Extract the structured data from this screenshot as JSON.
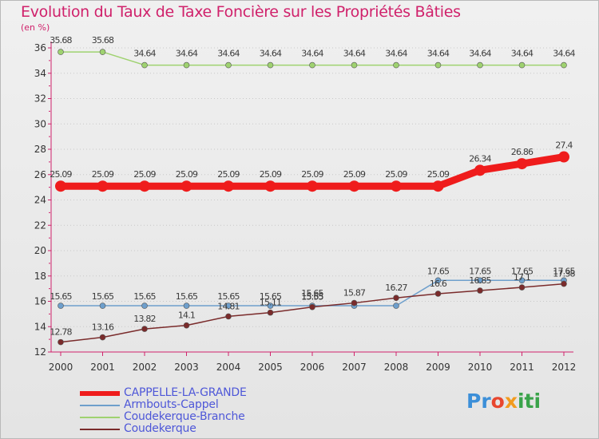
{
  "chart_data": {
    "type": "line",
    "title": "Evolution du Taux de Taxe Foncière sur les Propriétés Bâties",
    "ylabel": "(en %)",
    "xlabel": "",
    "categories": [
      "2000",
      "2001",
      "2002",
      "2003",
      "2004",
      "2005",
      "2006",
      "2007",
      "2008",
      "2009",
      "2010",
      "2011",
      "2012"
    ],
    "ylim": [
      12,
      36
    ],
    "yticks": [
      12,
      14,
      16,
      18,
      20,
      22,
      24,
      26,
      28,
      30,
      32,
      34,
      36
    ],
    "grid": "horizontal-dotted",
    "series": [
      {
        "name": "CAPPELLE-LA-GRANDE",
        "color": "#ef1c1c",
        "values": [
          25.09,
          25.09,
          25.09,
          25.09,
          25.09,
          25.09,
          25.09,
          25.09,
          25.09,
          25.09,
          26.34,
          26.86,
          27.4
        ],
        "labels": [
          "25.09",
          "25.09",
          "25.09",
          "25.09",
          "25.09",
          "25.09",
          "25.09",
          "25.09",
          "25.09",
          "25.09",
          "26.34",
          "26.86",
          "27.4"
        ]
      },
      {
        "name": "Armbouts-Cappel",
        "color": "#6e9fcc",
        "values": [
          15.65,
          15.65,
          15.65,
          15.65,
          15.65,
          15.65,
          15.65,
          15.65,
          15.65,
          17.65,
          17.65,
          17.65,
          17.65
        ],
        "labels": [
          "15.65",
          "15.65",
          "15.65",
          "15.65",
          "15.65",
          "15.65",
          "15.65",
          "",
          "",
          "17.65",
          "17.65",
          "17.65",
          "17.65"
        ]
      },
      {
        "name": "Coudekerque-Branche",
        "color": "#9fd270",
        "values": [
          35.68,
          35.68,
          34.64,
          34.64,
          34.64,
          34.64,
          34.64,
          34.64,
          34.64,
          34.64,
          34.64,
          34.64,
          34.64
        ],
        "labels": [
          "35.68",
          "35.68",
          "34.64",
          "34.64",
          "34.64",
          "34.64",
          "34.64",
          "34.64",
          "34.64",
          "34.64",
          "34.64",
          "34.64",
          "34.64"
        ]
      },
      {
        "name": "Coudekerque",
        "color": "#7a2b2b",
        "values": [
          12.78,
          13.16,
          13.82,
          14.1,
          14.81,
          15.11,
          15.55,
          15.87,
          16.27,
          16.6,
          16.85,
          17.1,
          17.38
        ],
        "labels": [
          "12.78",
          "13.16",
          "13.82",
          "14.1",
          "14.81",
          "15.11",
          "15.55",
          "15.87",
          "16.27",
          "16.6",
          "16.85",
          "17.1",
          "17.38"
        ]
      }
    ],
    "extra_labels": [
      "15.65",
      "15.65"
    ]
  },
  "legend": {
    "items": [
      {
        "label": "CAPPELLE-LA-GRANDE",
        "color": "#ef1c1c"
      },
      {
        "label": "Armbouts-Cappel",
        "color": "#6e9fcc"
      },
      {
        "label": "Coudekerque-Branche",
        "color": "#9fd270"
      },
      {
        "label": "Coudekerque",
        "color": "#7a2b2b"
      }
    ]
  },
  "logo": {
    "p1": "Pr",
    "p2": "o",
    "p3": "x",
    "p4": "iti"
  }
}
